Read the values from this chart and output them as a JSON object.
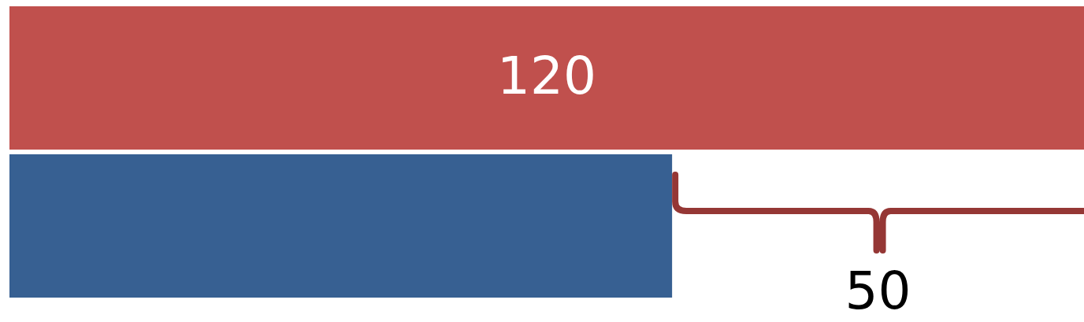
{
  "chart_data": {
    "type": "bar",
    "orientation": "horizontal",
    "categories": [
      null,
      null
    ],
    "values": [
      120,
      74
    ],
    "colors": [
      "#c0504d",
      "#376092"
    ],
    "value_labels": [
      "120",
      null
    ],
    "xlim": [
      0,
      120
    ],
    "tick_labels": false,
    "annotations": [
      "50"
    ]
  }
}
